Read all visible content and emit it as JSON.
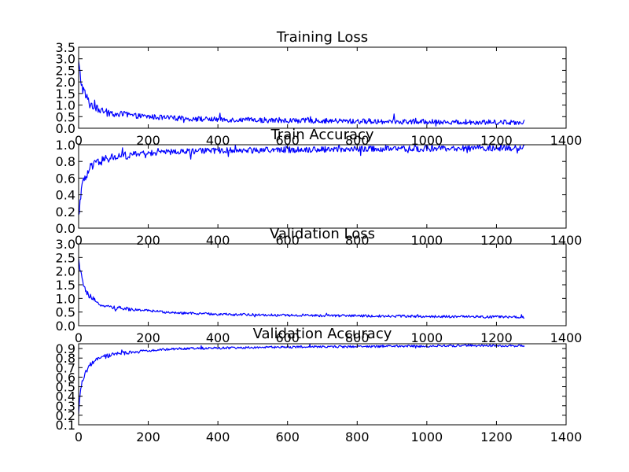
{
  "chart_data": [
    {
      "type": "line",
      "title": "Training Loss",
      "xlabel": "",
      "ylabel": "",
      "xlim": [
        0,
        1400
      ],
      "ylim": [
        0,
        3.5
      ],
      "xticks": [
        0,
        200,
        400,
        600,
        800,
        1000,
        1200,
        1400
      ],
      "xtick_labels": [
        "0",
        "200",
        "400",
        "600",
        "800",
        "1000",
        "1200",
        "1400"
      ],
      "yticks": [
        0,
        0.5,
        1,
        1.5,
        2,
        2.5,
        3,
        3.5
      ],
      "ytick_labels": [
        "0.0",
        "0.5",
        "1.0",
        "1.5",
        "2.0",
        "2.5",
        "3.0",
        "3.5"
      ],
      "grid": false,
      "series": [
        {
          "color": "#0000ff",
          "x": [
            0,
            5,
            10,
            20,
            30,
            50,
            75,
            100,
            150,
            200,
            250,
            300,
            400,
            500,
            600,
            700,
            800,
            900,
            1000,
            1100,
            1200,
            1280
          ],
          "y": [
            2.8,
            2.2,
            1.8,
            1.4,
            1.1,
            0.85,
            0.7,
            0.62,
            0.55,
            0.5,
            0.45,
            0.42,
            0.38,
            0.35,
            0.33,
            0.32,
            0.3,
            0.29,
            0.28,
            0.27,
            0.26,
            0.26
          ]
        }
      ]
    },
    {
      "type": "line",
      "title": "Train Accuracy",
      "xlabel": "",
      "ylabel": "",
      "xlim": [
        0,
        1400
      ],
      "ylim": [
        0,
        1.0
      ],
      "xticks": [
        0,
        200,
        400,
        600,
        800,
        1000,
        1200,
        1400
      ],
      "xtick_labels": [
        "0",
        "200",
        "400",
        "600",
        "800",
        "1000",
        "1200",
        "1400"
      ],
      "yticks": [
        0,
        0.2,
        0.4,
        0.6,
        0.8,
        1.0
      ],
      "ytick_labels": [
        "0.0",
        "0.2",
        "0.4",
        "0.6",
        "0.8",
        "1.0"
      ],
      "grid": false,
      "series": [
        {
          "color": "#0000ff",
          "x": [
            0,
            5,
            10,
            20,
            30,
            50,
            75,
            100,
            150,
            200,
            250,
            300,
            400,
            500,
            600,
            700,
            800,
            900,
            1000,
            1100,
            1200,
            1280
          ],
          "y": [
            0.12,
            0.4,
            0.5,
            0.6,
            0.7,
            0.78,
            0.82,
            0.85,
            0.88,
            0.9,
            0.91,
            0.92,
            0.93,
            0.935,
            0.94,
            0.945,
            0.95,
            0.95,
            0.955,
            0.955,
            0.96,
            0.96
          ]
        }
      ]
    },
    {
      "type": "line",
      "title": "Validation Loss",
      "xlabel": "",
      "ylabel": "",
      "xlim": [
        0,
        1400
      ],
      "ylim": [
        0,
        3.0
      ],
      "xticks": [
        0,
        200,
        400,
        600,
        800,
        1000,
        1200,
        1400
      ],
      "xtick_labels": [
        "0",
        "200",
        "400",
        "600",
        "800",
        "1000",
        "1200",
        "1400"
      ],
      "yticks": [
        0,
        0.5,
        1,
        1.5,
        2,
        2.5,
        3
      ],
      "ytick_labels": [
        "0.0",
        "0.5",
        "1.0",
        "1.5",
        "2.0",
        "2.5",
        "3.0"
      ],
      "grid": false,
      "series": [
        {
          "color": "#0000ff",
          "x": [
            0,
            5,
            10,
            20,
            30,
            50,
            75,
            100,
            150,
            200,
            250,
            300,
            400,
            500,
            600,
            700,
            800,
            900,
            1000,
            1100,
            1200,
            1280
          ],
          "y": [
            2.4,
            2.0,
            1.7,
            1.3,
            1.05,
            0.85,
            0.72,
            0.66,
            0.6,
            0.55,
            0.5,
            0.46,
            0.42,
            0.4,
            0.38,
            0.37,
            0.36,
            0.35,
            0.34,
            0.33,
            0.32,
            0.31
          ]
        }
      ]
    },
    {
      "type": "line",
      "title": "Validation Accuracy",
      "xlabel": "",
      "ylabel": "",
      "xlim": [
        0,
        1400
      ],
      "ylim": [
        0.1,
        0.95
      ],
      "xticks": [
        0,
        200,
        400,
        600,
        800,
        1000,
        1200,
        1400
      ],
      "xtick_labels": [
        "0",
        "200",
        "400",
        "600",
        "800",
        "1000",
        "1200",
        "1400"
      ],
      "yticks": [
        0.1,
        0.2,
        0.3,
        0.4,
        0.5,
        0.6,
        0.7,
        0.8,
        0.9
      ],
      "ytick_labels": [
        "0.1",
        "0.2",
        "0.3",
        "0.4",
        "0.5",
        "0.6",
        "0.7",
        "0.8",
        "0.9"
      ],
      "grid": false,
      "series": [
        {
          "color": "#0000ff",
          "x": [
            0,
            5,
            10,
            20,
            30,
            50,
            75,
            100,
            150,
            200,
            250,
            300,
            400,
            500,
            600,
            700,
            800,
            900,
            1000,
            1100,
            1200,
            1280
          ],
          "y": [
            0.2,
            0.45,
            0.55,
            0.65,
            0.72,
            0.78,
            0.82,
            0.84,
            0.86,
            0.88,
            0.89,
            0.9,
            0.905,
            0.91,
            0.915,
            0.92,
            0.92,
            0.925,
            0.925,
            0.93,
            0.93,
            0.93
          ]
        }
      ]
    }
  ]
}
